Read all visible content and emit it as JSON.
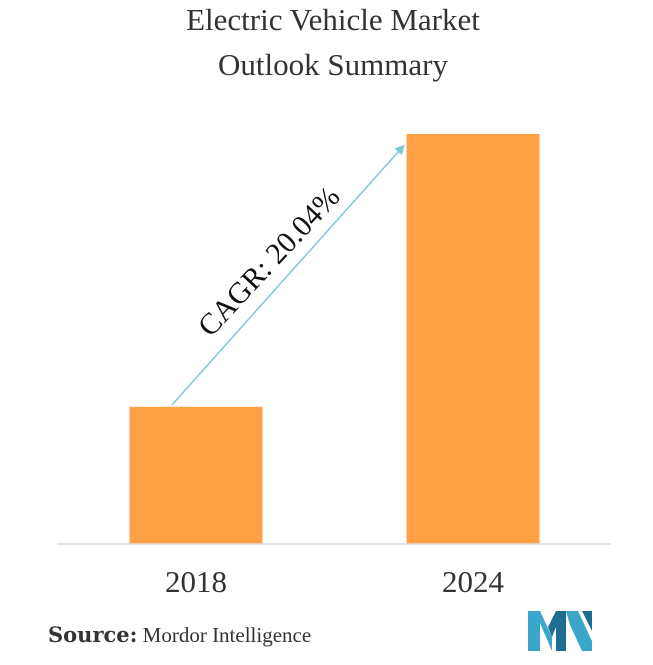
{
  "chart_data": {
    "type": "bar",
    "title": [
      "Electric Vehicle Market",
      "Outlook Summary"
    ],
    "categories": [
      "2018",
      "2024"
    ],
    "values": [
      1,
      2.99
    ],
    "xlabel": "",
    "ylabel": "",
    "ylim": [
      0,
      3.15
    ],
    "grid": false,
    "annotation": "CAGR: 20.04%",
    "colors": {
      "bar": "#FFA046",
      "arrow": "#7EC8D6",
      "axis": "#D9D9D9",
      "text": "#333333"
    }
  },
  "source": {
    "label": "Source:",
    "value": "Mordor Intelligence"
  },
  "logo": {
    "icon": "mordor-intelligence-logo-icon",
    "colors": [
      "#3AA6C9",
      "#1E6E93"
    ]
  }
}
